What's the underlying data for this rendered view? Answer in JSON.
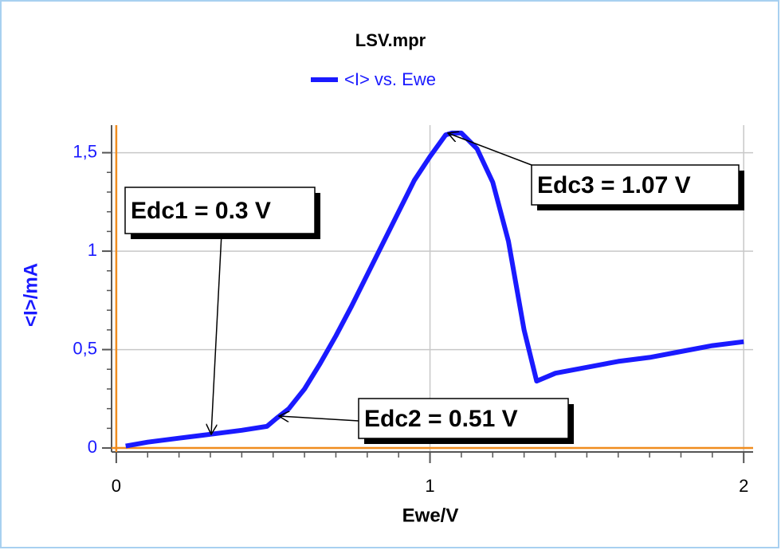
{
  "chart_data": {
    "type": "line",
    "title": "LSV.mpr",
    "x_label": "Ewe/V",
    "y_label": "<I>/mA",
    "x": [
      0.03,
      0.1,
      0.2,
      0.3,
      0.4,
      0.48,
      0.51,
      0.55,
      0.6,
      0.65,
      0.7,
      0.75,
      0.8,
      0.85,
      0.9,
      0.95,
      1.0,
      1.05,
      1.07,
      1.1,
      1.15,
      1.2,
      1.25,
      1.3,
      1.34,
      1.4,
      1.5,
      1.6,
      1.7,
      1.8,
      1.9,
      2.0
    ],
    "series": [
      {
        "name": "<I> vs. Ewe",
        "color": "#1a1aff",
        "values": [
          0.01,
          0.03,
          0.05,
          0.07,
          0.09,
          0.11,
          0.15,
          0.2,
          0.3,
          0.43,
          0.57,
          0.72,
          0.88,
          1.04,
          1.2,
          1.36,
          1.48,
          1.59,
          1.6,
          1.6,
          1.52,
          1.35,
          1.05,
          0.6,
          0.34,
          0.38,
          0.41,
          0.44,
          0.46,
          0.49,
          0.52,
          0.54
        ]
      }
    ],
    "xlim": [
      -0.015,
      2.03
    ],
    "ylim": [
      -0.02,
      1.64
    ],
    "xticks": [
      0,
      1,
      2
    ],
    "yticks": [
      0,
      {
        "value": 0.5,
        "label": "0,5"
      },
      1,
      {
        "value": 1.5,
        "label": "1,5"
      }
    ],
    "grid": true,
    "annotations": [
      "Edc1 = 0.3 V",
      "Edc2 = 0.51 V",
      "Edc3 = 1.07 V"
    ]
  }
}
